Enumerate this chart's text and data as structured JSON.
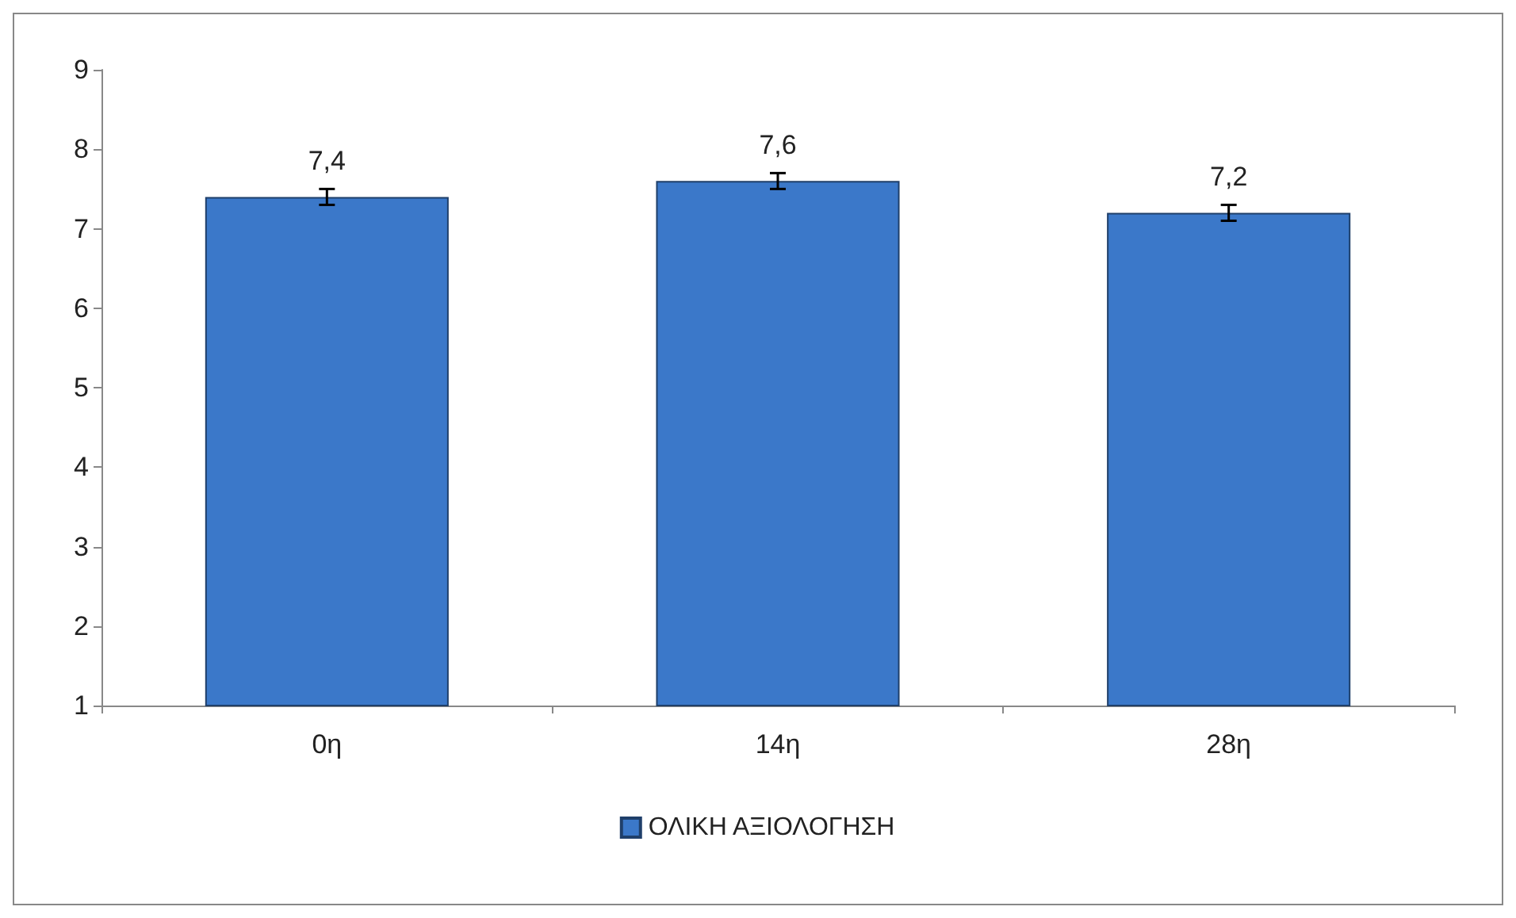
{
  "chart_data": {
    "type": "bar",
    "categories": [
      "0η",
      "14η",
      "28η"
    ],
    "series": [
      {
        "name": "ΟΛΙΚΗ ΑΞΙΟΛΟΓΗΣΗ",
        "color": "#3b78c9",
        "values": [
          7.4,
          7.6,
          7.2
        ],
        "errors": [
          0.1,
          0.1,
          0.1
        ],
        "value_labels": [
          "7,4",
          "7,6",
          "7,2"
        ]
      }
    ],
    "ylim": [
      1,
      9
    ],
    "yticks": [
      1,
      2,
      3,
      4,
      5,
      6,
      7,
      8,
      9
    ],
    "grid": false,
    "legend": "bottom"
  }
}
